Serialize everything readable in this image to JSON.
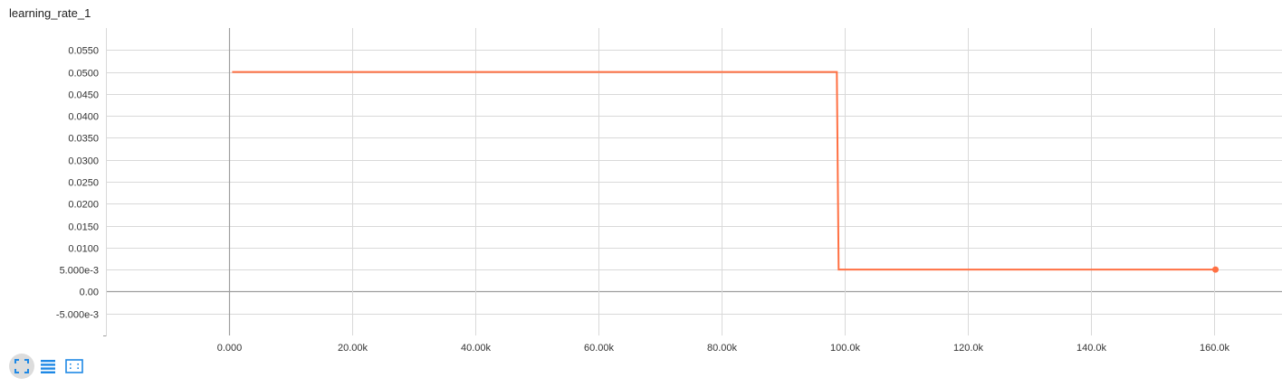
{
  "card": {
    "title": "learning_rate_1"
  },
  "colors": {
    "series": "#ff7043",
    "grid": "#d9d9d9",
    "axis": "#9e9e9e",
    "icon": "#1e88e5"
  },
  "toolbar": {
    "buttons": [
      {
        "icon": "fit-domain-icon",
        "active": true
      },
      {
        "icon": "data-table-icon",
        "active": false
      },
      {
        "icon": "log-scale-toggle-icon",
        "active": false
      }
    ]
  },
  "chart_data": {
    "type": "line",
    "title": "learning_rate_1",
    "xlabel": "",
    "ylabel": "",
    "xlim": [
      -20000,
      171000
    ],
    "ylim": [
      -0.01,
      0.06
    ],
    "x_ticks": [
      0,
      20000,
      40000,
      60000,
      80000,
      100000,
      120000,
      140000,
      160000
    ],
    "x_tick_labels": [
      "0.000",
      "20.00k",
      "40.00k",
      "60.00k",
      "80.00k",
      "100.0k",
      "120.0k",
      "140.0k",
      "160.0k"
    ],
    "y_ticks": [
      0.055,
      0.05,
      0.045,
      0.04,
      0.035,
      0.03,
      0.025,
      0.02,
      0.015,
      0.01,
      0.005,
      0.0,
      -0.005
    ],
    "y_tick_labels": [
      "0.0550",
      "0.0500",
      "0.0450",
      "0.0400",
      "0.0350",
      "0.0300",
      "0.0250",
      "0.0200",
      "0.0150",
      "0.0100",
      "5.000e-3",
      "0.00",
      "-5.000e-3"
    ],
    "grid": true,
    "series": [
      {
        "x": [
          500,
          98700,
          99000,
          160200
        ],
        "y": [
          0.05,
          0.05,
          0.005,
          0.005
        ]
      }
    ]
  }
}
